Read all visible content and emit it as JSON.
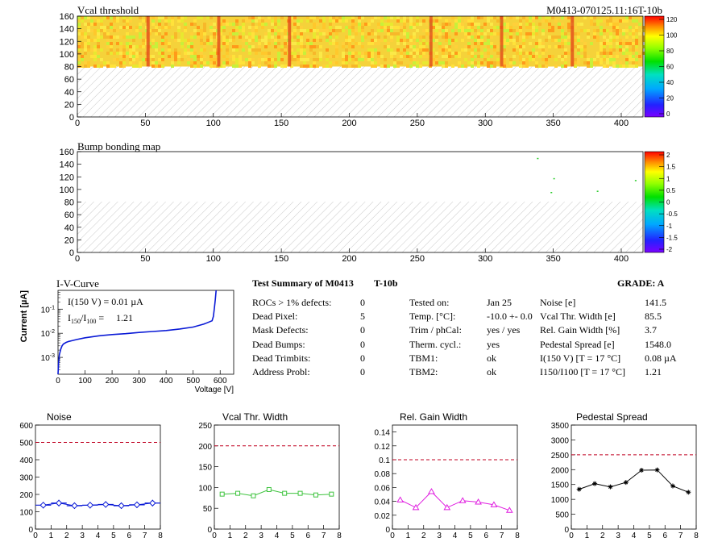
{
  "chart_data": [
    {
      "type": "heatmap",
      "title": "Vcal threshold",
      "module_id": "M0413-070125.11:16T-10b",
      "x_ticks": [
        0,
        50,
        100,
        150,
        200,
        250,
        300,
        350,
        400
      ],
      "y_ticks": [
        0,
        20,
        40,
        60,
        80,
        100,
        120,
        140,
        160
      ],
      "xlim": [
        0,
        416
      ],
      "ylim": [
        0,
        160
      ],
      "palette_ticks": [
        "120",
        "100",
        "80",
        "60",
        "40",
        "20",
        "0"
      ],
      "data_y_range": [
        80,
        160
      ],
      "dark_columns": [
        52,
        104,
        156,
        260,
        312,
        364
      ]
    },
    {
      "type": "heatmap",
      "title": "Bump bonding map",
      "x_ticks": [
        0,
        50,
        100,
        150,
        200,
        250,
        300,
        350,
        400
      ],
      "y_ticks": [
        0,
        20,
        40,
        60,
        80,
        100,
        120,
        140,
        160
      ],
      "xlim": [
        0,
        416
      ],
      "ylim": [
        0,
        160
      ],
      "palette_ticks": [
        "2",
        "1.5",
        "1",
        "0.5",
        "0",
        "-0.5",
        "-1",
        "-1.5",
        "-2"
      ],
      "points": [
        [
          338,
          150
        ],
        [
          350,
          118
        ],
        [
          348,
          96
        ],
        [
          382,
          98
        ],
        [
          410,
          115
        ]
      ]
    },
    {
      "type": "line",
      "title": "I-V-Curve",
      "xlabel": "Voltage [V]",
      "ylabel": "Current [µA]",
      "yscale": "log",
      "x_ticks": [
        0,
        100,
        200,
        300,
        400,
        500,
        600
      ],
      "xlim": [
        0,
        650
      ],
      "ylim": [
        0.0002,
        0.6
      ],
      "annotation_i": "I(150 V) = 0.01 µA",
      "annotation_ratio_value": "1.21",
      "x": [
        0,
        2,
        5,
        10,
        15,
        20,
        30,
        40,
        50,
        70,
        100,
        150,
        200,
        250,
        300,
        350,
        400,
        450,
        500,
        540,
        570,
        575,
        578,
        582,
        585
      ],
      "y": [
        0.0002,
        0.0006,
        0.0013,
        0.0022,
        0.003,
        0.0036,
        0.0042,
        0.0046,
        0.0049,
        0.0055,
        0.0065,
        0.0078,
        0.0088,
        0.0096,
        0.0108,
        0.0118,
        0.013,
        0.015,
        0.018,
        0.024,
        0.033,
        0.05,
        0.1,
        0.25,
        0.6
      ]
    },
    {
      "type": "line",
      "title": "Noise",
      "x": [
        0.5,
        1.5,
        2.5,
        3.5,
        4.5,
        5.5,
        6.5,
        7.5
      ],
      "values": [
        138,
        150,
        135,
        138,
        142,
        135,
        140,
        150
      ],
      "ylim": [
        0,
        600
      ],
      "xlim": [
        0,
        8
      ],
      "y_ticks": [
        0,
        100,
        200,
        300,
        400,
        500,
        600
      ],
      "x_ticks": [
        0,
        1,
        2,
        3,
        4,
        5,
        6,
        7,
        8
      ],
      "threshold": 500,
      "color": "#0a1ad6",
      "marker": "diamond-open",
      "error_bars": true
    },
    {
      "type": "line",
      "title": "Vcal Thr. Width",
      "x": [
        0.5,
        1.5,
        2.5,
        3.5,
        4.5,
        5.5,
        6.5,
        7.5
      ],
      "values": [
        84,
        86,
        80,
        95,
        86,
        86,
        82,
        84
      ],
      "ylim": [
        0,
        250
      ],
      "xlim": [
        0,
        8
      ],
      "y_ticks": [
        0,
        50,
        100,
        150,
        200,
        250
      ],
      "x_ticks": [
        0,
        1,
        2,
        3,
        4,
        5,
        6,
        7,
        8
      ],
      "threshold": 200,
      "color": "#3ec33e",
      "marker": "square-open"
    },
    {
      "type": "line",
      "title": "Rel. Gain Width",
      "x": [
        0.5,
        1.5,
        2.5,
        3.5,
        4.5,
        5.5,
        6.5,
        7.5
      ],
      "values": [
        0.042,
        0.031,
        0.054,
        0.031,
        0.041,
        0.039,
        0.035,
        0.027
      ],
      "ylim": [
        0,
        0.15
      ],
      "xlim": [
        0,
        8
      ],
      "y_ticks": [
        0,
        0.02,
        0.04,
        0.06,
        0.08,
        0.1,
        0.12,
        0.14
      ],
      "y_tick_labels": [
        "0",
        "0.02",
        "0.04",
        "0.06",
        "0.08",
        "0.1",
        "0.12",
        "0.14"
      ],
      "x_ticks": [
        0,
        1,
        2,
        3,
        4,
        5,
        6,
        7,
        8
      ],
      "threshold": 0.1,
      "color": "#e01ee0",
      "marker": "triangle-open"
    },
    {
      "type": "line",
      "title": "Pedestal Spread",
      "x": [
        0.5,
        1.5,
        2.5,
        3.5,
        4.5,
        5.5,
        6.5,
        7.5
      ],
      "values": [
        1340,
        1530,
        1420,
        1570,
        1980,
        1990,
        1450,
        1240
      ],
      "ylim": [
        0,
        3500
      ],
      "xlim": [
        0,
        8
      ],
      "y_ticks": [
        0,
        500,
        1000,
        1500,
        2000,
        2500,
        3000,
        3500
      ],
      "x_ticks": [
        0,
        1,
        2,
        3,
        4,
        5,
        6,
        7,
        8
      ],
      "threshold": 2500,
      "color": "#000000",
      "marker": "star"
    }
  ],
  "summary": {
    "title": "Test Summary of M0413",
    "module_type": "T-10b",
    "grade_label": "GRADE:  A",
    "left_rows": [
      {
        "label": "ROCs > 1% defects:",
        "value": "0"
      },
      {
        "label": "Dead Pixel:",
        "value": "5"
      },
      {
        "label": "Mask Defects:",
        "value": "0"
      },
      {
        "label": "Dead Bumps:",
        "value": "0"
      },
      {
        "label": "Dead Trimbits:",
        "value": "0"
      },
      {
        "label": "Address Probl:",
        "value": "0"
      }
    ],
    "mid_rows": [
      {
        "label": "Tested on:",
        "value": "Jan 25"
      },
      {
        "label": "Temp. [°C]:",
        "value": "-10.0 +- 0.0"
      },
      {
        "label": "Trim / phCal:",
        "value": "yes / yes"
      },
      {
        "label": "Therm. cycl.:",
        "value": "yes"
      },
      {
        "label": "TBM1:",
        "value": "ok"
      },
      {
        "label": "TBM2:",
        "value": "ok"
      }
    ],
    "right_rows": [
      {
        "label": "Noise [e]",
        "value": "141.5"
      },
      {
        "label": "Vcal Thr. Width [e]",
        "value": "85.5"
      },
      {
        "label": "Rel. Gain Width [%]",
        "value": "3.7"
      },
      {
        "label": "Pedestal Spread [e]",
        "value": "1548.0"
      },
      {
        "label": "I(150 V) [T = 17 °C]",
        "value": "0.08 µA"
      },
      {
        "label": "I150/I100  [T = 17 °C]",
        "value": "1.21"
      }
    ]
  }
}
